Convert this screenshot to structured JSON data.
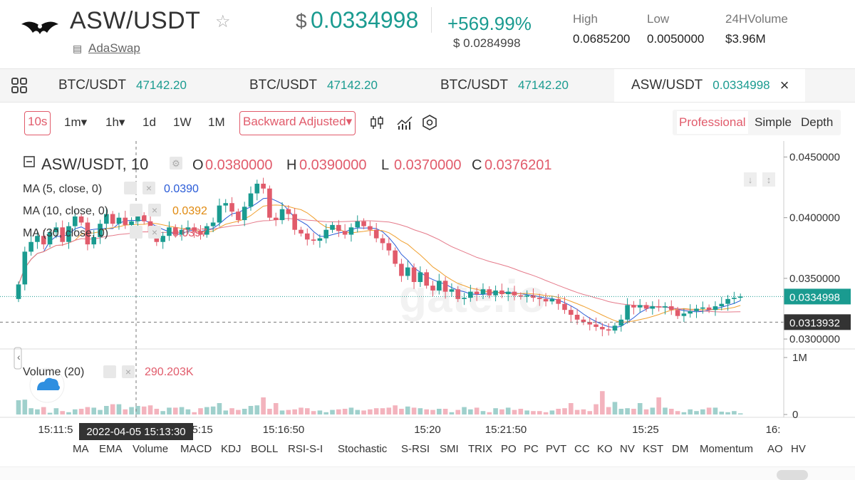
{
  "header": {
    "pair": "ASW/USDT",
    "exchange": "AdaSwap",
    "currency_symbol": "$",
    "price": "0.0334998",
    "change_pct": "+569.99%",
    "change_usd": "$ 0.0284998",
    "stats": [
      {
        "label": "High",
        "value": "0.0685200"
      },
      {
        "label": "Low",
        "value": "0.0050000"
      },
      {
        "label": "24HVolume",
        "value": "$3.96M"
      }
    ]
  },
  "tabs": [
    {
      "name": "BTC/USDT",
      "price": "47142.20"
    },
    {
      "name": "BTC/USDT",
      "price": "47142.20"
    },
    {
      "name": "BTC/USDT",
      "price": "47142.20"
    },
    {
      "name": "ASW/USDT",
      "price": "0.0334998",
      "close": "×"
    }
  ],
  "toolbar": {
    "intervals": [
      "10s",
      "1m▾",
      "1h▾",
      "1d",
      "1W",
      "1M"
    ],
    "adjust": "Backward Adjusted▾",
    "modes": [
      "Professional",
      "Simple",
      "Depth"
    ]
  },
  "legend": {
    "symbol": "ASW/USDT, 10",
    "O": "0.0380000",
    "H": "0.0390000",
    "L": "0.0370000",
    "C": "0.0376201",
    "ma": [
      {
        "label": "MA (5, close, 0)",
        "value": "0.0390",
        "color": "#2a5bd7"
      },
      {
        "label": "MA (10, close, 0)",
        "value": "0.0392",
        "color": "#f0a030"
      },
      {
        "label": "MA (30, close, 0)",
        "value": "0.0397",
        "color": "#e57a8a"
      }
    ],
    "volume_label": "Volume (20)",
    "volume_value": "290.203K"
  },
  "chart_data": {
    "type": "candlestick",
    "y_ticks": [
      "0.0450000",
      "0.0400000",
      "0.0350000",
      "0.0300000"
    ],
    "y_tick_values": [
      0.045,
      0.04,
      0.035,
      0.03
    ],
    "ylim": [
      0.0293,
      0.0462
    ],
    "current_price": "0.0334998",
    "current_price_value": 0.0334998,
    "crosshair_price": "0.0313932",
    "crosshair_price_value": 0.0313932,
    "crosshair_time": "2022-04-05 15:13:30",
    "x_ticks": [
      "15:11:5",
      "15:15",
      "15:16:50",
      "15:20",
      "15:21:50",
      "15:25",
      "16:"
    ],
    "volume_ticks": [
      "1M",
      "0"
    ],
    "watermark": "gate.io",
    "closes": [
      0.0345,
      0.0372,
      0.038,
      0.0385,
      0.0378,
      0.0388,
      0.0392,
      0.038,
      0.0393,
      0.0401,
      0.0396,
      0.0378,
      0.0384,
      0.0395,
      0.0403,
      0.0395,
      0.04,
      0.0394,
      0.0397,
      0.0402,
      0.0397,
      0.0388,
      0.038,
      0.0385,
      0.0392,
      0.0386,
      0.039,
      0.0392,
      0.0389,
      0.0386,
      0.0393,
      0.0396,
      0.041,
      0.0412,
      0.0405,
      0.0398,
      0.0409,
      0.042,
      0.0428,
      0.0424,
      0.04,
      0.0398,
      0.0407,
      0.0403,
      0.039,
      0.0387,
      0.0382,
      0.0381,
      0.0383,
      0.039,
      0.0394,
      0.0389,
      0.0386,
      0.0392,
      0.0397,
      0.0393,
      0.039,
      0.0383,
      0.0379,
      0.0373,
      0.0362,
      0.0352,
      0.0359,
      0.0347,
      0.0355,
      0.0344,
      0.034,
      0.0348,
      0.0339,
      0.0341,
      0.0333,
      0.0334,
      0.0339,
      0.0337,
      0.0341,
      0.0336,
      0.034,
      0.0337,
      0.0339,
      0.0336,
      0.0335,
      0.0336,
      0.0334,
      0.0333,
      0.0331,
      0.0333,
      0.0329,
      0.0324,
      0.032,
      0.0316,
      0.0314,
      0.0312,
      0.031,
      0.0308,
      0.0307,
      0.0311,
      0.0316,
      0.0328,
      0.0326,
      0.0328,
      0.0325,
      0.0327,
      0.0326,
      0.0327,
      0.0324,
      0.0319,
      0.0321,
      0.0323,
      0.0325,
      0.0326,
      0.0324,
      0.0327,
      0.0329,
      0.0333,
      0.0334,
      0.0335
    ],
    "volumes": [
      250,
      260,
      110,
      90,
      130,
      30,
      110,
      60,
      40,
      90,
      100,
      130,
      120,
      80,
      150,
      180,
      180,
      90,
      130,
      150,
      140,
      160,
      100,
      60,
      120,
      120,
      130,
      90,
      40,
      110,
      130,
      140,
      200,
      70,
      110,
      80,
      100,
      150,
      160,
      300,
      100,
      200,
      70,
      80,
      90,
      120,
      110,
      60,
      70,
      40,
      80,
      90,
      100,
      120,
      80,
      70,
      90,
      110,
      110,
      120,
      160,
      100,
      140,
      120,
      110,
      90,
      80,
      100,
      100,
      40,
      80,
      130,
      90,
      120,
      60,
      40,
      110,
      90,
      120,
      80,
      100,
      70,
      60,
      60,
      40,
      70,
      100,
      110,
      200,
      80,
      90,
      60,
      180,
      410,
      130,
      220,
      100,
      110,
      100,
      200,
      90,
      120,
      300,
      120,
      100,
      60,
      40,
      90,
      60,
      90,
      120,
      120,
      50,
      40,
      60,
      20
    ]
  },
  "indicators": [
    "MA",
    "EMA",
    "Volume",
    "MACD",
    "KDJ",
    "BOLL",
    "RSI-S-I",
    "Stochastic",
    "S-RSI",
    "SMI",
    "TRIX",
    "PO",
    "PC",
    "PVT",
    "CC",
    "KO",
    "NV",
    "KST",
    "DM",
    "Momentum",
    "AO",
    "HV"
  ]
}
